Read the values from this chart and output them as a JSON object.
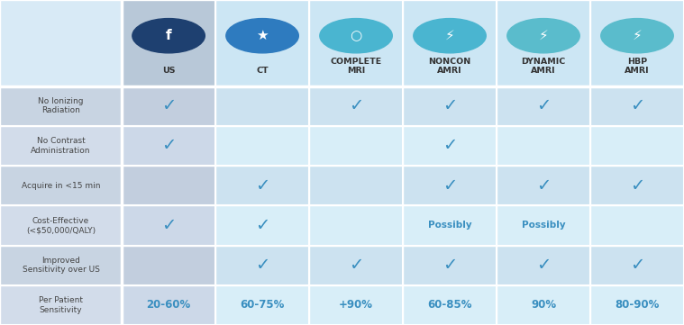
{
  "columns": [
    "US",
    "CT",
    "COMPLETE\nMRI",
    "NONCON\nAMRI",
    "DYNAMIC\nAMRI",
    "HBP\nAMRI"
  ],
  "rows": [
    "No Ionizing\nRadiation",
    "No Contrast\nAdministration",
    "Acquire in <15 min",
    "Cost-Effective\n(<$50,000/QALY)",
    "Improved\nSensitivity over US",
    "Per Patient\nSensitivity"
  ],
  "checkmarks": [
    [
      true,
      false,
      true,
      true,
      true,
      true
    ],
    [
      true,
      false,
      false,
      true,
      false,
      false
    ],
    [
      false,
      true,
      false,
      true,
      true,
      true
    ],
    [
      true,
      true,
      false,
      false,
      false,
      false
    ],
    [
      false,
      true,
      true,
      true,
      true,
      true
    ]
  ],
  "possibly": [
    [
      false,
      false,
      false,
      false,
      false,
      false
    ],
    [
      false,
      false,
      false,
      false,
      false,
      false
    ],
    [
      false,
      false,
      false,
      false,
      false,
      false
    ],
    [
      false,
      false,
      false,
      true,
      true,
      false
    ],
    [
      false,
      false,
      false,
      false,
      false,
      false
    ]
  ],
  "sensitivity": [
    "20-60%",
    "60-75%",
    "+90%",
    "60-85%",
    "90%",
    "80-90%"
  ],
  "check_color": "#3a8fc0",
  "possibly_color": "#3a8fc0",
  "sensitivity_color": "#3a8fc0",
  "row_label_color": "#444444",
  "col_header_color": "#333333",
  "icon_colors": [
    "#1e4070",
    "#2e7bbf",
    "#4ab5d0",
    "#4ab5d0",
    "#5abccc",
    "#5abccc"
  ],
  "fig_bg": "#e8f4fa",
  "left_col_bg_even": "#c8d4e2",
  "left_col_bg_odd": "#d2dcea",
  "col0_cell_even": "#c2cede",
  "col0_cell_odd": "#ccd8e8",
  "other_cell_even": "#cce2f0",
  "other_cell_odd": "#d8eef8",
  "header_col0_bg": "#b8c8d8",
  "header_other_bg": "#cce6f4",
  "left_header_bg": "#d8eaf6"
}
